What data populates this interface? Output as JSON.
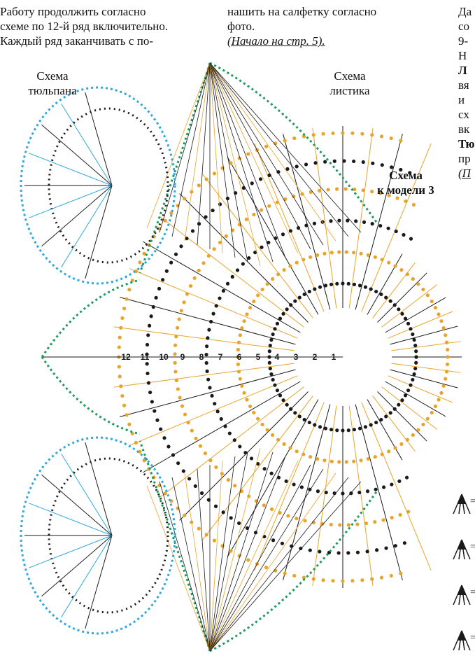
{
  "columns": [
    {
      "lines": [
        "Работу продолжить согласно",
        "схеме по 12-й ряд включительно.",
        "Каждый ряд заканчивать с по-"
      ]
    },
    {
      "lines": [
        "нашить на салфетку согласно",
        "фото."
      ],
      "link": "(Начало на стр. 5)."
    },
    {
      "lines": [
        "Да",
        "со",
        "9-",
        "Н",
        "Л",
        "вя",
        "и",
        "сх",
        "вк",
        "Тю",
        "пр",
        "(П"
      ]
    }
  ],
  "labels": {
    "tulip": [
      "Схема",
      "тюльпана"
    ],
    "leaf": [
      "Схема",
      "листика"
    ],
    "model": [
      "Схема",
      "к модели 3"
    ]
  },
  "row_numbers": [
    "12",
    "11",
    "10",
    "9",
    "8",
    "7",
    "6",
    "5",
    "4",
    "3",
    "2",
    "1"
  ],
  "legend": [
    "=",
    "=",
    "=",
    "="
  ]
}
